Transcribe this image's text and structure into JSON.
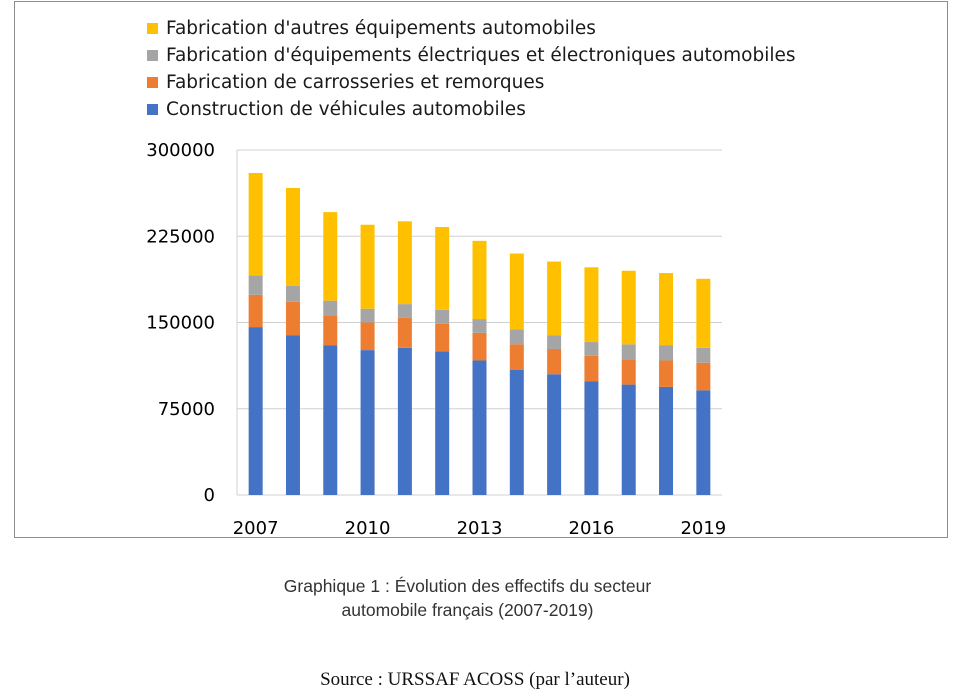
{
  "chart_data": {
    "type": "bar",
    "stacked": true,
    "categories": [
      "2007",
      "2008",
      "2009",
      "2010",
      "2011",
      "2012",
      "2013",
      "2014",
      "2015",
      "2016",
      "2017",
      "2018",
      "2019"
    ],
    "x_tick_labels": [
      "2007",
      "2010",
      "2013",
      "2016",
      "2019"
    ],
    "series": [
      {
        "name": "Construction de véhicules automobiles",
        "color": "#4472C4",
        "values": [
          146000,
          139000,
          130000,
          126000,
          128000,
          125000,
          117000,
          109000,
          105000,
          99000,
          96000,
          94000,
          91000
        ]
      },
      {
        "name": "Fabrication de carrosseries et remorques",
        "color": "#ED7D31",
        "values": [
          28000,
          29000,
          26000,
          24000,
          26000,
          24000,
          24000,
          22000,
          22000,
          22000,
          22000,
          23000,
          24000
        ]
      },
      {
        "name": "Fabrication d'équipements électriques et électroniques automobiles",
        "color": "#A5A5A5",
        "values": [
          17000,
          14000,
          13000,
          12000,
          12000,
          12000,
          12000,
          13000,
          12000,
          12000,
          13000,
          13000,
          13000
        ]
      },
      {
        "name": "Fabrication d'autres équipements automobiles",
        "color": "#FFC000",
        "values": [
          89000,
          85000,
          77000,
          73000,
          72000,
          72000,
          68000,
          66000,
          64000,
          65000,
          64000,
          63000,
          60000
        ]
      }
    ],
    "legend_order": [
      3,
      2,
      1,
      0
    ],
    "ylim": [
      0,
      300000
    ],
    "y_ticks": [
      0,
      75000,
      150000,
      225000,
      300000
    ],
    "y_tick_labels": [
      "0",
      "75000",
      "150000",
      "225000",
      "300000"
    ],
    "grid": true,
    "legend_placement": "top-left"
  },
  "caption": {
    "line1": "Graphique 1 : Évolution des effectifs du secteur",
    "line2": "automobile français (2007-2019)"
  },
  "source": "Source : URSSAF ACOSS (par l’auteur)"
}
